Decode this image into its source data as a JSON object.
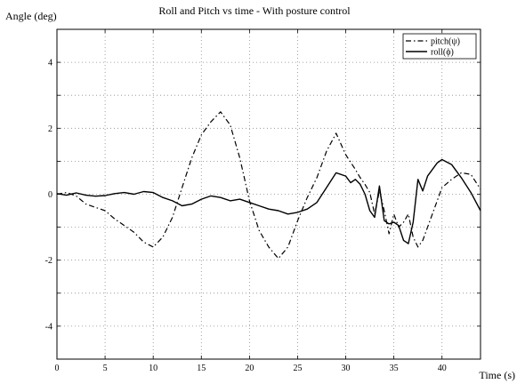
{
  "chart_data": {
    "type": "line",
    "title": "Roll and Pitch vs time - With posture control",
    "xlabel": "Time (s)",
    "ylabel": "Angle (deg)",
    "xlim": [
      0,
      44
    ],
    "ylim": [
      -5,
      5
    ],
    "xticks": [
      "0",
      "5",
      "10",
      "15",
      "20",
      "25",
      "30",
      "35",
      "40"
    ],
    "yticks": [
      "4",
      "2",
      "0",
      "-2",
      "-4"
    ],
    "grid": true,
    "legend_position": "top-right",
    "series": [
      {
        "name": "pitch(ψ)",
        "style": "dash-dot",
        "color": "#000000",
        "points": [
          [
            0,
            0
          ],
          [
            1,
            0.05
          ],
          [
            2,
            -0.05
          ],
          [
            3,
            -0.3
          ],
          [
            4,
            -0.4
          ],
          [
            5,
            -0.5
          ],
          [
            6,
            -0.75
          ],
          [
            7,
            -0.95
          ],
          [
            8,
            -1.15
          ],
          [
            9,
            -1.45
          ],
          [
            10,
            -1.6
          ],
          [
            11,
            -1.3
          ],
          [
            12,
            -0.7
          ],
          [
            13,
            0.2
          ],
          [
            14,
            1.1
          ],
          [
            15,
            1.8
          ],
          [
            16,
            2.2
          ],
          [
            17,
            2.5
          ],
          [
            18,
            2.1
          ],
          [
            19,
            1.1
          ],
          [
            20,
            -0.2
          ],
          [
            21,
            -1.1
          ],
          [
            22,
            -1.6
          ],
          [
            23,
            -1.95
          ],
          [
            24,
            -1.6
          ],
          [
            25,
            -0.8
          ],
          [
            26,
            -0.1
          ],
          [
            27,
            0.5
          ],
          [
            28,
            1.3
          ],
          [
            29,
            1.85
          ],
          [
            30,
            1.2
          ],
          [
            31,
            0.75
          ],
          [
            31.5,
            0.5
          ],
          [
            32,
            0.3
          ],
          [
            32.5,
            0.05
          ],
          [
            33,
            -0.6
          ],
          [
            33.5,
            0.1
          ],
          [
            34,
            -0.5
          ],
          [
            34.5,
            -1.2
          ],
          [
            35,
            -0.6
          ],
          [
            35.5,
            -1.0
          ],
          [
            36,
            -0.85
          ],
          [
            36.5,
            -0.6
          ],
          [
            37,
            -1.3
          ],
          [
            37.5,
            -1.6
          ],
          [
            38,
            -1.4
          ],
          [
            39,
            -0.6
          ],
          [
            40,
            0.2
          ],
          [
            41,
            0.45
          ],
          [
            42,
            0.65
          ],
          [
            43,
            0.6
          ],
          [
            44,
            0.15
          ]
        ]
      },
      {
        "name": "roll(ϕ)",
        "style": "solid",
        "color": "#000000",
        "points": [
          [
            0,
            0.02
          ],
          [
            1,
            -0.03
          ],
          [
            2,
            0.04
          ],
          [
            3,
            -0.03
          ],
          [
            4,
            -0.06
          ],
          [
            5,
            -0.04
          ],
          [
            6,
            0.02
          ],
          [
            7,
            0.05
          ],
          [
            8,
            0.0
          ],
          [
            9,
            0.08
          ],
          [
            10,
            0.05
          ],
          [
            11,
            -0.1
          ],
          [
            12,
            -0.2
          ],
          [
            13,
            -0.35
          ],
          [
            14,
            -0.3
          ],
          [
            15,
            -0.15
          ],
          [
            16,
            -0.05
          ],
          [
            17,
            -0.1
          ],
          [
            18,
            -0.2
          ],
          [
            19,
            -0.15
          ],
          [
            20,
            -0.25
          ],
          [
            21,
            -0.35
          ],
          [
            22,
            -0.45
          ],
          [
            23,
            -0.5
          ],
          [
            24,
            -0.6
          ],
          [
            25,
            -0.55
          ],
          [
            26,
            -0.45
          ],
          [
            27,
            -0.25
          ],
          [
            28,
            0.2
          ],
          [
            29,
            0.65
          ],
          [
            30,
            0.55
          ],
          [
            30.5,
            0.35
          ],
          [
            31,
            0.45
          ],
          [
            31.5,
            0.3
          ],
          [
            32,
            0.0
          ],
          [
            32.5,
            -0.5
          ],
          [
            33,
            -0.7
          ],
          [
            33.5,
            0.25
          ],
          [
            34,
            -0.8
          ],
          [
            34.5,
            -0.9
          ],
          [
            35,
            -0.85
          ],
          [
            35.5,
            -0.95
          ],
          [
            36,
            -1.4
          ],
          [
            36.5,
            -1.5
          ],
          [
            37,
            -0.85
          ],
          [
            37.5,
            0.45
          ],
          [
            38,
            0.1
          ],
          [
            38.5,
            0.55
          ],
          [
            39,
            0.75
          ],
          [
            39.5,
            0.95
          ],
          [
            40,
            1.05
          ],
          [
            41,
            0.9
          ],
          [
            42,
            0.5
          ],
          [
            43,
            0.05
          ],
          [
            44,
            -0.5
          ]
        ]
      }
    ]
  }
}
